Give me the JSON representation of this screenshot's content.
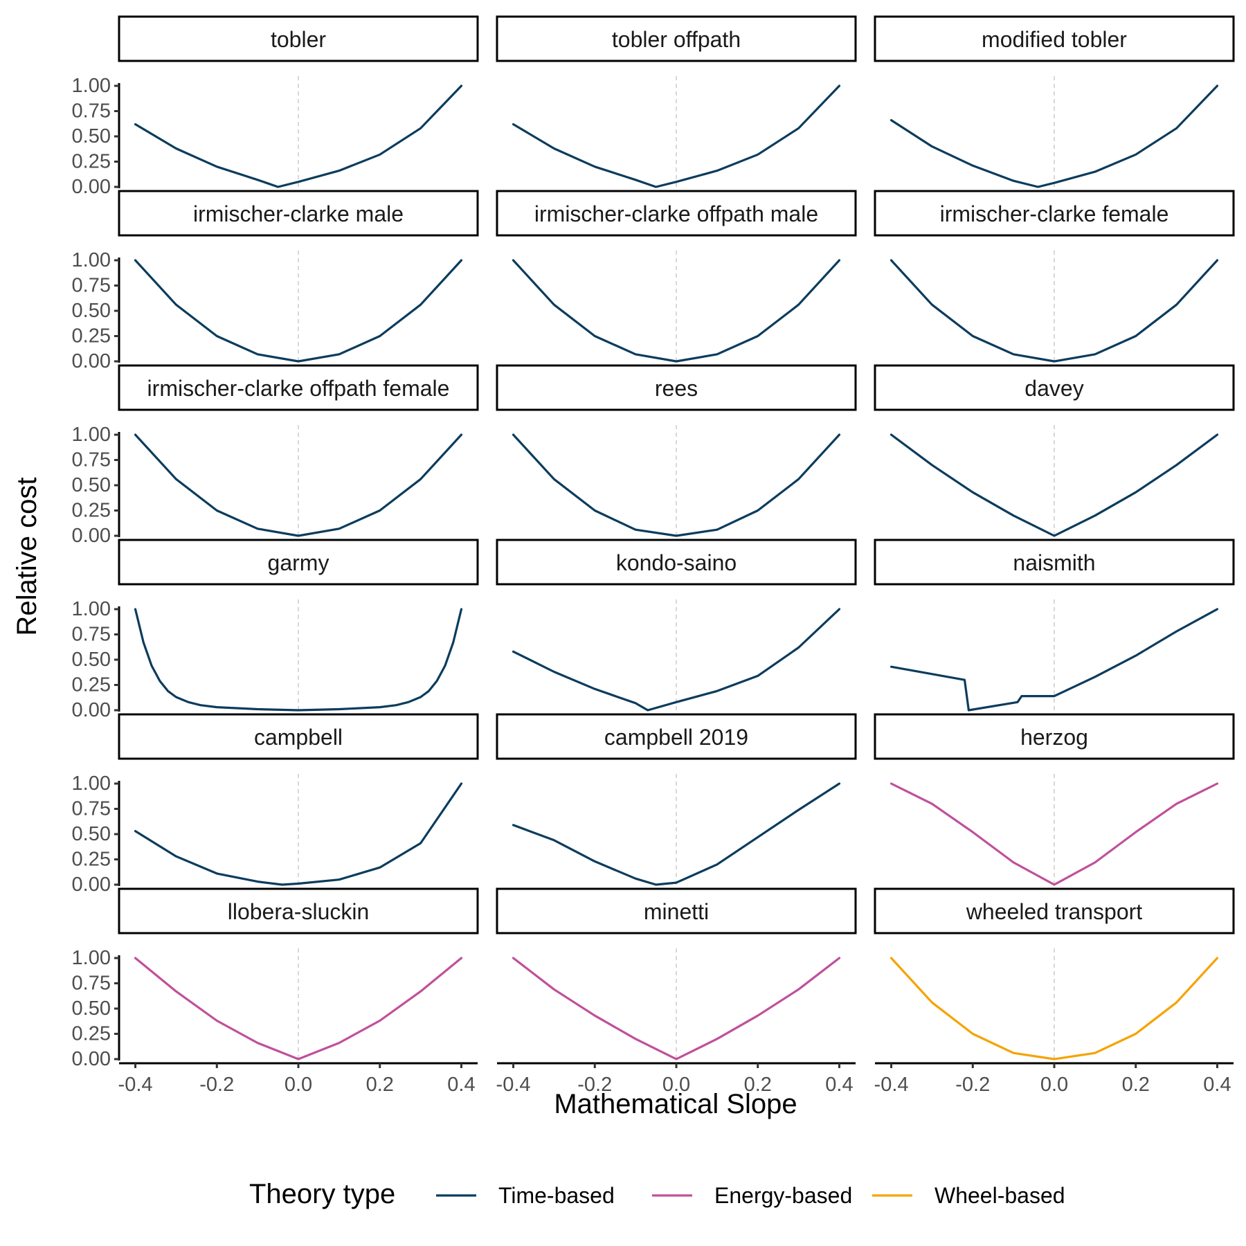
{
  "chart_data": {
    "type": "line",
    "xlabel": "Mathematical Slope",
    "ylabel": "Relative cost",
    "xlim": [
      -0.44,
      0.44
    ],
    "ylim": [
      0,
      1
    ],
    "x_ticks": [
      -0.4,
      -0.2,
      0.0,
      0.2,
      0.4
    ],
    "x_tick_labels": [
      "-0.4",
      "-0.2",
      "0.0",
      "0.2",
      "0.4"
    ],
    "y_ticks": [
      0,
      0.25,
      0.5,
      0.75,
      1.0
    ],
    "y_tick_labels": [
      "0.00",
      "0.25",
      "0.50",
      "0.75",
      "1.00"
    ],
    "reference_line_x": 0,
    "grid": false,
    "legend": {
      "title": "Theory type",
      "position": "bottom",
      "entries": [
        {
          "label": "Time-based",
          "color": "#0b3c5d"
        },
        {
          "label": "Energy-based",
          "color": "#c0509a"
        },
        {
          "label": "Wheel-based",
          "color": "#f5a300"
        }
      ]
    },
    "panels": [
      {
        "name": "tobler",
        "type": "Time-based",
        "points": [
          [
            -0.4,
            0.62
          ],
          [
            -0.3,
            0.38
          ],
          [
            -0.2,
            0.2
          ],
          [
            -0.1,
            0.07
          ],
          [
            -0.05,
            0.0
          ],
          [
            0,
            0.05
          ],
          [
            0.1,
            0.16
          ],
          [
            0.2,
            0.32
          ],
          [
            0.3,
            0.58
          ],
          [
            0.4,
            1.0
          ]
        ]
      },
      {
        "name": "tobler offpath",
        "type": "Time-based",
        "points": [
          [
            -0.4,
            0.62
          ],
          [
            -0.3,
            0.38
          ],
          [
            -0.2,
            0.2
          ],
          [
            -0.1,
            0.07
          ],
          [
            -0.05,
            0.0
          ],
          [
            0,
            0.05
          ],
          [
            0.1,
            0.16
          ],
          [
            0.2,
            0.32
          ],
          [
            0.3,
            0.58
          ],
          [
            0.4,
            1.0
          ]
        ]
      },
      {
        "name": "modified tobler",
        "type": "Time-based",
        "points": [
          [
            -0.4,
            0.66
          ],
          [
            -0.3,
            0.4
          ],
          [
            -0.2,
            0.21
          ],
          [
            -0.1,
            0.06
          ],
          [
            -0.04,
            0.0
          ],
          [
            0,
            0.04
          ],
          [
            0.1,
            0.15
          ],
          [
            0.2,
            0.32
          ],
          [
            0.3,
            0.58
          ],
          [
            0.4,
            1.0
          ]
        ]
      },
      {
        "name": "irmischer-clarke male",
        "type": "Time-based",
        "points": [
          [
            -0.4,
            1.0
          ],
          [
            -0.3,
            0.56
          ],
          [
            -0.2,
            0.25
          ],
          [
            -0.1,
            0.07
          ],
          [
            0,
            0.0
          ],
          [
            0.1,
            0.07
          ],
          [
            0.2,
            0.25
          ],
          [
            0.3,
            0.56
          ],
          [
            0.4,
            1.0
          ]
        ]
      },
      {
        "name": "irmischer-clarke offpath male",
        "type": "Time-based",
        "points": [
          [
            -0.4,
            1.0
          ],
          [
            -0.3,
            0.56
          ],
          [
            -0.2,
            0.25
          ],
          [
            -0.1,
            0.07
          ],
          [
            0,
            0.0
          ],
          [
            0.1,
            0.07
          ],
          [
            0.2,
            0.25
          ],
          [
            0.3,
            0.56
          ],
          [
            0.4,
            1.0
          ]
        ]
      },
      {
        "name": "irmischer-clarke female",
        "type": "Time-based",
        "points": [
          [
            -0.4,
            1.0
          ],
          [
            -0.3,
            0.56
          ],
          [
            -0.2,
            0.25
          ],
          [
            -0.1,
            0.07
          ],
          [
            0,
            0.0
          ],
          [
            0.1,
            0.07
          ],
          [
            0.2,
            0.25
          ],
          [
            0.3,
            0.56
          ],
          [
            0.4,
            1.0
          ]
        ]
      },
      {
        "name": "irmischer-clarke offpath female",
        "type": "Time-based",
        "points": [
          [
            -0.4,
            1.0
          ],
          [
            -0.3,
            0.56
          ],
          [
            -0.2,
            0.25
          ],
          [
            -0.1,
            0.07
          ],
          [
            0,
            0.0
          ],
          [
            0.1,
            0.07
          ],
          [
            0.2,
            0.25
          ],
          [
            0.3,
            0.56
          ],
          [
            0.4,
            1.0
          ]
        ]
      },
      {
        "name": "rees",
        "type": "Time-based",
        "points": [
          [
            -0.4,
            1.0
          ],
          [
            -0.3,
            0.56
          ],
          [
            -0.2,
            0.25
          ],
          [
            -0.1,
            0.06
          ],
          [
            0,
            0.0
          ],
          [
            0.1,
            0.06
          ],
          [
            0.2,
            0.25
          ],
          [
            0.3,
            0.56
          ],
          [
            0.4,
            1.0
          ]
        ]
      },
      {
        "name": "davey",
        "type": "Time-based",
        "points": [
          [
            -0.4,
            1.0
          ],
          [
            -0.3,
            0.7
          ],
          [
            -0.2,
            0.43
          ],
          [
            -0.1,
            0.2
          ],
          [
            0,
            0.0
          ],
          [
            0.1,
            0.2
          ],
          [
            0.2,
            0.43
          ],
          [
            0.3,
            0.7
          ],
          [
            0.4,
            1.0
          ]
        ]
      },
      {
        "name": "garmy",
        "type": "Time-based",
        "points": [
          [
            -0.4,
            1.0
          ],
          [
            -0.38,
            0.67
          ],
          [
            -0.36,
            0.44
          ],
          [
            -0.34,
            0.29
          ],
          [
            -0.32,
            0.19
          ],
          [
            -0.3,
            0.13
          ],
          [
            -0.27,
            0.08
          ],
          [
            -0.24,
            0.05
          ],
          [
            -0.2,
            0.03
          ],
          [
            -0.1,
            0.01
          ],
          [
            0,
            0.0
          ],
          [
            0.1,
            0.01
          ],
          [
            0.2,
            0.03
          ],
          [
            0.24,
            0.05
          ],
          [
            0.27,
            0.08
          ],
          [
            0.3,
            0.13
          ],
          [
            0.32,
            0.19
          ],
          [
            0.34,
            0.29
          ],
          [
            0.36,
            0.44
          ],
          [
            0.38,
            0.67
          ],
          [
            0.4,
            1.0
          ]
        ]
      },
      {
        "name": "kondo-saino",
        "type": "Time-based",
        "points": [
          [
            -0.4,
            0.58
          ],
          [
            -0.3,
            0.38
          ],
          [
            -0.2,
            0.21
          ],
          [
            -0.1,
            0.07
          ],
          [
            -0.07,
            0.0
          ],
          [
            0,
            0.08
          ],
          [
            0.1,
            0.19
          ],
          [
            0.2,
            0.34
          ],
          [
            0.3,
            0.62
          ],
          [
            0.4,
            1.0
          ]
        ]
      },
      {
        "name": "naismith",
        "type": "Time-based",
        "points": [
          [
            -0.4,
            0.43
          ],
          [
            -0.22,
            0.3
          ],
          [
            -0.21,
            0.0
          ],
          [
            -0.09,
            0.08
          ],
          [
            -0.08,
            0.14
          ],
          [
            0,
            0.14
          ],
          [
            0.1,
            0.33
          ],
          [
            0.2,
            0.54
          ],
          [
            0.3,
            0.78
          ],
          [
            0.4,
            1.0
          ]
        ]
      },
      {
        "name": "campbell",
        "type": "Time-based",
        "points": [
          [
            -0.4,
            0.53
          ],
          [
            -0.3,
            0.28
          ],
          [
            -0.2,
            0.11
          ],
          [
            -0.1,
            0.03
          ],
          [
            -0.04,
            0.0
          ],
          [
            0,
            0.01
          ],
          [
            0.1,
            0.05
          ],
          [
            0.2,
            0.17
          ],
          [
            0.3,
            0.41
          ],
          [
            0.4,
            1.0
          ]
        ]
      },
      {
        "name": "campbell 2019",
        "type": "Time-based",
        "points": [
          [
            -0.4,
            0.59
          ],
          [
            -0.3,
            0.44
          ],
          [
            -0.2,
            0.23
          ],
          [
            -0.1,
            0.06
          ],
          [
            -0.05,
            0.0
          ],
          [
            0,
            0.02
          ],
          [
            0.1,
            0.2
          ],
          [
            0.2,
            0.47
          ],
          [
            0.3,
            0.74
          ],
          [
            0.4,
            1.0
          ]
        ]
      },
      {
        "name": "herzog",
        "type": "Energy-based",
        "points": [
          [
            -0.4,
            1.0
          ],
          [
            -0.3,
            0.8
          ],
          [
            -0.2,
            0.52
          ],
          [
            -0.1,
            0.22
          ],
          [
            0,
            0.0
          ],
          [
            0.1,
            0.22
          ],
          [
            0.2,
            0.52
          ],
          [
            0.3,
            0.8
          ],
          [
            0.4,
            1.0
          ]
        ]
      },
      {
        "name": "llobera-sluckin",
        "type": "Energy-based",
        "points": [
          [
            -0.4,
            1.0
          ],
          [
            -0.3,
            0.67
          ],
          [
            -0.2,
            0.38
          ],
          [
            -0.1,
            0.16
          ],
          [
            0,
            0.0
          ],
          [
            0.1,
            0.16
          ],
          [
            0.2,
            0.38
          ],
          [
            0.3,
            0.67
          ],
          [
            0.4,
            1.0
          ]
        ]
      },
      {
        "name": "minetti",
        "type": "Energy-based",
        "points": [
          [
            -0.4,
            1.0
          ],
          [
            -0.3,
            0.69
          ],
          [
            -0.2,
            0.43
          ],
          [
            -0.1,
            0.2
          ],
          [
            0,
            0.0
          ],
          [
            0.1,
            0.2
          ],
          [
            0.2,
            0.43
          ],
          [
            0.3,
            0.69
          ],
          [
            0.4,
            1.0
          ]
        ]
      },
      {
        "name": "wheeled transport",
        "type": "Wheel-based",
        "points": [
          [
            -0.4,
            1.0
          ],
          [
            -0.3,
            0.56
          ],
          [
            -0.2,
            0.25
          ],
          [
            -0.1,
            0.06
          ],
          [
            0,
            0.0
          ],
          [
            0.1,
            0.06
          ],
          [
            0.2,
            0.25
          ],
          [
            0.3,
            0.56
          ],
          [
            0.4,
            1.0
          ]
        ]
      }
    ]
  }
}
